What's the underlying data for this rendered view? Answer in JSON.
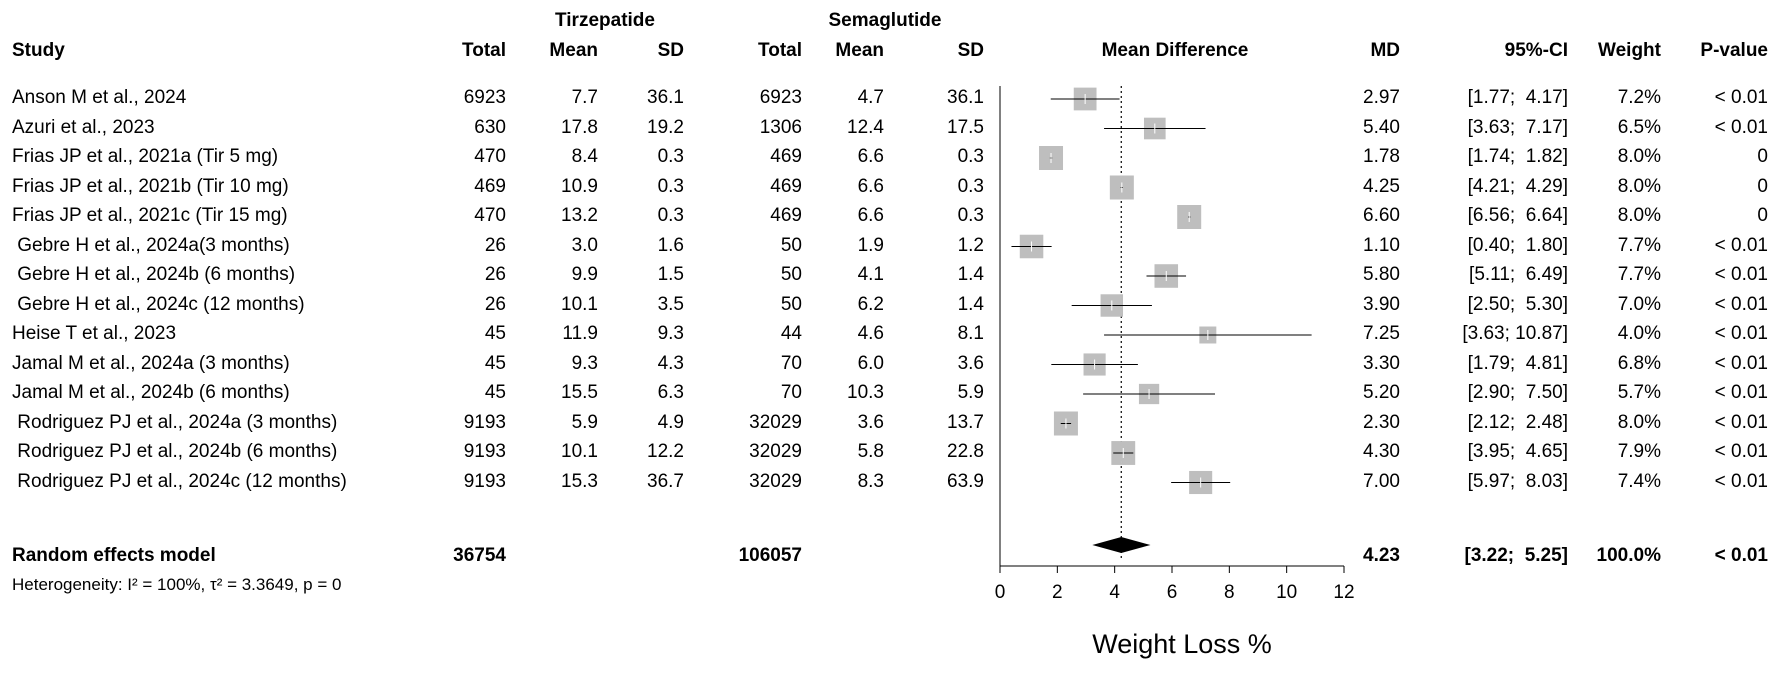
{
  "headers": {
    "group1": "Tirzepatide",
    "group2": "Semaglutide",
    "study": "Study",
    "total": "Total",
    "mean": "Mean",
    "sd": "SD",
    "mean_difference": "Mean Difference",
    "md": "MD",
    "ci": "95%-CI",
    "weight": "Weight",
    "pvalue": "P-value"
  },
  "studies": [
    {
      "name": "Anson M et al., 2024",
      "t_total": "6923",
      "t_mean": "7.7",
      "t_sd": "36.1",
      "s_total": "6923",
      "s_mean": "4.7",
      "s_sd": "36.1",
      "md_text": "2.97",
      "ci_text": "[1.77;  4.17]",
      "weight_text": "7.2%",
      "p_text": "< 0.01"
    },
    {
      "name": "Azuri et al., 2023",
      "t_total": "630",
      "t_mean": "17.8",
      "t_sd": "19.2",
      "s_total": "1306",
      "s_mean": "12.4",
      "s_sd": "17.5",
      "md_text": "5.40",
      "ci_text": "[3.63;  7.17]",
      "weight_text": "6.5%",
      "p_text": "< 0.01"
    },
    {
      "name": "Frias JP et al., 2021a (Tir 5 mg)",
      "t_total": "470",
      "t_mean": "8.4",
      "t_sd": "0.3",
      "s_total": "469",
      "s_mean": "6.6",
      "s_sd": "0.3",
      "md_text": "1.78",
      "ci_text": "[1.74;  1.82]",
      "weight_text": "8.0%",
      "p_text": "0"
    },
    {
      "name": "Frias JP et al., 2021b (Tir 10 mg)",
      "t_total": "469",
      "t_mean": "10.9",
      "t_sd": "0.3",
      "s_total": "469",
      "s_mean": "6.6",
      "s_sd": "0.3",
      "md_text": "4.25",
      "ci_text": "[4.21;  4.29]",
      "weight_text": "8.0%",
      "p_text": "0"
    },
    {
      "name": "Frias JP et al., 2021c (Tir 15 mg)",
      "t_total": "470",
      "t_mean": "13.2",
      "t_sd": "0.3",
      "s_total": "469",
      "s_mean": "6.6",
      "s_sd": "0.3",
      "md_text": "6.60",
      "ci_text": "[6.56;  6.64]",
      "weight_text": "8.0%",
      "p_text": "0"
    },
    {
      "name": " Gebre H et al., 2024a(3 months)",
      "t_total": "26",
      "t_mean": "3.0",
      "t_sd": "1.6",
      "s_total": "50",
      "s_mean": "1.9",
      "s_sd": "1.2",
      "md_text": "1.10",
      "ci_text": "[0.40;  1.80]",
      "weight_text": "7.7%",
      "p_text": "< 0.01"
    },
    {
      "name": " Gebre H et al., 2024b (6 months)",
      "t_total": "26",
      "t_mean": "9.9",
      "t_sd": "1.5",
      "s_total": "50",
      "s_mean": "4.1",
      "s_sd": "1.4",
      "md_text": "5.80",
      "ci_text": "[5.11;  6.49]",
      "weight_text": "7.7%",
      "p_text": "< 0.01"
    },
    {
      "name": " Gebre H et al., 2024c (12 months)",
      "t_total": "26",
      "t_mean": "10.1",
      "t_sd": "3.5",
      "s_total": "50",
      "s_mean": "6.2",
      "s_sd": "1.4",
      "md_text": "3.90",
      "ci_text": "[2.50;  5.30]",
      "weight_text": "7.0%",
      "p_text": "< 0.01"
    },
    {
      "name": "Heise T et al., 2023",
      "t_total": "45",
      "t_mean": "11.9",
      "t_sd": "9.3",
      "s_total": "44",
      "s_mean": "4.6",
      "s_sd": "8.1",
      "md_text": "7.25",
      "ci_text": "[3.63; 10.87]",
      "weight_text": "4.0%",
      "p_text": "< 0.01"
    },
    {
      "name": "Jamal M et al., 2024a (3 months)",
      "t_total": "45",
      "t_mean": "9.3",
      "t_sd": "4.3",
      "s_total": "70",
      "s_mean": "6.0",
      "s_sd": "3.6",
      "md_text": "3.30",
      "ci_text": "[1.79;  4.81]",
      "weight_text": "6.8%",
      "p_text": "< 0.01"
    },
    {
      "name": "Jamal M et al., 2024b (6 months)",
      "t_total": "45",
      "t_mean": "15.5",
      "t_sd": "6.3",
      "s_total": "70",
      "s_mean": "10.3",
      "s_sd": "5.9",
      "md_text": "5.20",
      "ci_text": "[2.90;  7.50]",
      "weight_text": "5.7%",
      "p_text": "< 0.01"
    },
    {
      "name": " Rodriguez PJ et al., 2024a (3 months)",
      "t_total": "9193",
      "t_mean": "5.9",
      "t_sd": "4.9",
      "s_total": "32029",
      "s_mean": "3.6",
      "s_sd": "13.7",
      "md_text": "2.30",
      "ci_text": "[2.12;  2.48]",
      "weight_text": "8.0%",
      "p_text": "< 0.01"
    },
    {
      "name": " Rodriguez PJ et al., 2024b (6 months)",
      "t_total": "9193",
      "t_mean": "10.1",
      "t_sd": "12.2",
      "s_total": "32029",
      "s_mean": "5.8",
      "s_sd": "22.8",
      "md_text": "4.30",
      "ci_text": "[3.95;  4.65]",
      "weight_text": "7.9%",
      "p_text": "< 0.01"
    },
    {
      "name": " Rodriguez PJ et al., 2024c (12 months)",
      "t_total": "9193",
      "t_mean": "15.3",
      "t_sd": "36.7",
      "s_total": "32029",
      "s_mean": "8.3",
      "s_sd": "63.9",
      "md_text": "7.00",
      "ci_text": "[5.97;  8.03]",
      "weight_text": "7.4%",
      "p_text": "< 0.01"
    }
  ],
  "summary": {
    "label": "Random effects model",
    "t_total": "36754",
    "s_total": "106057",
    "md_text": "4.23",
    "ci_text": "[3.22;  5.25]",
    "weight_text": "100.0%",
    "p_text": "< 0.01",
    "heterogeneity": "Heterogeneity: I² = 100%, τ² = 3.3649, p = 0"
  },
  "colors": {
    "box": "#bebebe",
    "line": "#000000"
  },
  "chart_data": {
    "type": "forest",
    "xlabel": "Weight Loss %",
    "xlim": [
      0,
      12
    ],
    "xticks": [
      0,
      2,
      4,
      6,
      8,
      10,
      12
    ],
    "reference_line": 4.23,
    "reference_style": "dotted",
    "points": [
      {
        "study": "Anson M et al., 2024",
        "md": 2.97,
        "lo": 1.77,
        "hi": 4.17,
        "weight": 7.2
      },
      {
        "study": "Azuri et al., 2023",
        "md": 5.4,
        "lo": 3.63,
        "hi": 7.17,
        "weight": 6.5
      },
      {
        "study": "Frias JP et al., 2021a (Tir 5 mg)",
        "md": 1.78,
        "lo": 1.74,
        "hi": 1.82,
        "weight": 8.0
      },
      {
        "study": "Frias JP et al., 2021b (Tir 10 mg)",
        "md": 4.25,
        "lo": 4.21,
        "hi": 4.29,
        "weight": 8.0
      },
      {
        "study": "Frias JP et al., 2021c (Tir 15 mg)",
        "md": 6.6,
        "lo": 6.56,
        "hi": 6.64,
        "weight": 8.0
      },
      {
        "study": "Gebre H et al., 2024a(3 months)",
        "md": 1.1,
        "lo": 0.4,
        "hi": 1.8,
        "weight": 7.7
      },
      {
        "study": "Gebre H et al., 2024b (6 months)",
        "md": 5.8,
        "lo": 5.11,
        "hi": 6.49,
        "weight": 7.7
      },
      {
        "study": "Gebre H et al., 2024c (12 months)",
        "md": 3.9,
        "lo": 2.5,
        "hi": 5.3,
        "weight": 7.0
      },
      {
        "study": "Heise T et al., 2023",
        "md": 7.25,
        "lo": 3.63,
        "hi": 10.87,
        "weight": 4.0
      },
      {
        "study": "Jamal M et al., 2024a (3 months)",
        "md": 3.3,
        "lo": 1.79,
        "hi": 4.81,
        "weight": 6.8
      },
      {
        "study": "Jamal M et al., 2024b (6 months)",
        "md": 5.2,
        "lo": 2.9,
        "hi": 7.5,
        "weight": 5.7
      },
      {
        "study": "Rodriguez PJ et al., 2024a (3 months)",
        "md": 2.3,
        "lo": 2.12,
        "hi": 2.48,
        "weight": 8.0
      },
      {
        "study": "Rodriguez PJ et al., 2024b (6 months)",
        "md": 4.3,
        "lo": 3.95,
        "hi": 4.65,
        "weight": 7.9
      },
      {
        "study": "Rodriguez PJ et al., 2024c (12 months)",
        "md": 7.0,
        "lo": 5.97,
        "hi": 8.03,
        "weight": 7.4
      }
    ],
    "summary": {
      "md": 4.23,
      "lo": 3.22,
      "hi": 5.25
    }
  }
}
